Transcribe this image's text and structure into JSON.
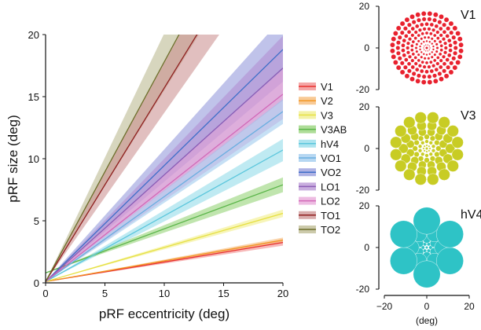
{
  "chart_data": [
    {
      "type": "line",
      "title": "",
      "xlabel": "pRF eccentricity (deg)",
      "ylabel": "pRF size (deg)",
      "xlim": [
        0,
        20
      ],
      "ylim": [
        0,
        20
      ],
      "x_ticks": [
        0,
        5,
        10,
        15,
        20
      ],
      "y_ticks": [
        0,
        5,
        10,
        15,
        20
      ],
      "legend_position": "right",
      "series": [
        {
          "name": "V1",
          "color": "#e8302e",
          "x": [
            0,
            20
          ],
          "y": [
            0.1,
            3.25
          ],
          "band_halfwidth_at_20": 0.25
        },
        {
          "name": "V2",
          "color": "#f29624",
          "x": [
            0,
            20
          ],
          "y": [
            0.1,
            3.45
          ],
          "band_halfwidth_at_20": 0.2
        },
        {
          "name": "V3",
          "color": "#e6e043",
          "x": [
            0,
            20
          ],
          "y": [
            0.1,
            5.6
          ],
          "band_halfwidth_at_20": 0.3
        },
        {
          "name": "V3AB",
          "color": "#5bb54a",
          "x": [
            0,
            20
          ],
          "y": [
            0.8,
            7.9
          ],
          "band_halfwidth_at_20": 0.6
        },
        {
          "name": "hV4",
          "color": "#5bc6dc",
          "x": [
            0,
            20
          ],
          "y": [
            0.1,
            10.7
          ],
          "band_halfwidth_at_20": 0.9
        },
        {
          "name": "VO1",
          "color": "#6aaee0",
          "x": [
            0,
            20
          ],
          "y": [
            0.1,
            13.8
          ],
          "band_halfwidth_at_20": 1.0
        },
        {
          "name": "VO2",
          "color": "#3f6fc8",
          "x": [
            0,
            20
          ],
          "y": [
            0.1,
            18.8
          ],
          "band_halfwidth_at_20": 2.6
        },
        {
          "name": "LO1",
          "color": "#8b5cb5",
          "x": [
            0,
            20
          ],
          "y": [
            0.1,
            17.3
          ],
          "band_halfwidth_at_20": 2.6
        },
        {
          "name": "LO2",
          "color": "#d268b8",
          "x": [
            0,
            20
          ],
          "y": [
            0.1,
            15.2
          ],
          "band_halfwidth_at_20": 2.0
        },
        {
          "name": "TO1",
          "color": "#8f1f1f",
          "x": [
            0,
            20
          ],
          "y": [
            0.1,
            31.3
          ],
          "band_halfwidth_at_20": 4.0
        },
        {
          "name": "TO2",
          "color": "#6c6d2a",
          "x": [
            0,
            20
          ],
          "y": [
            0.1,
            35.5
          ],
          "band_halfwidth_at_20": 4.6
        }
      ],
      "band_colors": {
        "V1": "#f08080",
        "V2": "#f5b36a",
        "V3": "#f0ec80",
        "V3AB": "#8ccf6c",
        "hV4": "#8ad8e8",
        "VO1": "#97c6ec",
        "VO2": "#8c91d8",
        "LO1": "#b08ad0",
        "LO2": "#e6a0d6",
        "TO1": "#c98a8a",
        "TO2": "#b7b488"
      }
    },
    {
      "type": "scatter",
      "name": "V1",
      "color": "#e8212e",
      "xlim": [
        -20,
        20
      ],
      "ylim": [
        -20,
        20
      ],
      "y_ticks": [
        20,
        0,
        -20
      ],
      "points": "polar grid of 8 rings (radii 1.5–16.5 deg), 10–36 circles per ring, circle diameter proportional to eccentricity"
    },
    {
      "type": "scatter",
      "name": "V3",
      "color": "#c8cc24",
      "xlim": [
        -20,
        20
      ],
      "ylim": [
        -20,
        20
      ],
      "y_ticks": [
        20,
        0,
        -20
      ],
      "points": "polar grid of 6 rings (radii 1.5–16 deg), 8–16 circles per ring, circle diameter proportional to eccentricity"
    },
    {
      "type": "scatter",
      "name": "hV4",
      "color": "#2ec3c6",
      "xlim": [
        -20,
        20
      ],
      "ylim": [
        -20,
        20
      ],
      "x_ticks": [
        -20,
        0,
        20
      ],
      "y_ticks": [
        20,
        0,
        -20
      ],
      "xlabel": "(deg)",
      "points": "polar grid of 4 rings (radii 2–13 deg), 6 circles per ring, circle diameter proportional to eccentricity"
    }
  ]
}
